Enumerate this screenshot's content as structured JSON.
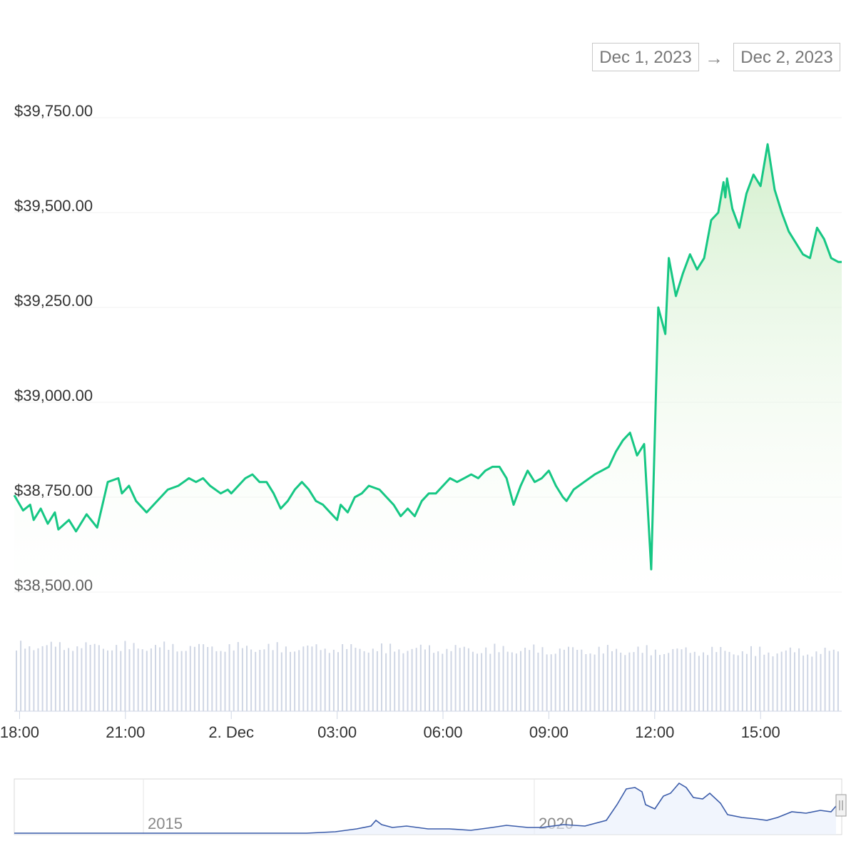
{
  "range": {
    "from": "Dec 1, 2023",
    "arrow": "→",
    "to": "Dec 2, 2023"
  },
  "colors": {
    "line": "#16c784",
    "fill_top": "#d6f0cf",
    "volume": "#cfd6e4",
    "navigator_line": "#3a5ba9",
    "grid": "#f0f0f0"
  },
  "chart_data": {
    "type": "line",
    "y_axis": {
      "ticks": [
        "$39,750.00",
        "$39,500.00",
        "$39,250.00",
        "$39,000.00",
        "$38,750.00",
        "$38,500.00"
      ],
      "tick_values": [
        39750,
        39500,
        39250,
        39000,
        38750,
        38500
      ],
      "ylim": [
        38500,
        39750
      ]
    },
    "x_axis": {
      "ticks": [
        "18:00",
        "21:00",
        "2. Dec",
        "03:00",
        "06:00",
        "09:00",
        "12:00",
        "15:00"
      ],
      "tick_hours": [
        0,
        3,
        6,
        9,
        12,
        15,
        18,
        21
      ],
      "xlim_hours": [
        -0.15,
        23.3
      ]
    },
    "series": [
      {
        "hours": [
          -0.15,
          0.1,
          0.3,
          0.4,
          0.6,
          0.8,
          1.0,
          1.1,
          1.4,
          1.6,
          1.9,
          2.2,
          2.5,
          2.8,
          2.9,
          3.1,
          3.3,
          3.6,
          3.8,
          4.0,
          4.2,
          4.5,
          4.8,
          5.0,
          5.2,
          5.4,
          5.7,
          5.9,
          6.0,
          6.2,
          6.4,
          6.6,
          6.8,
          7.0,
          7.2,
          7.4,
          7.6,
          7.8,
          8.0,
          8.2,
          8.4,
          8.6,
          8.8,
          9.0,
          9.1,
          9.3,
          9.5,
          9.7,
          9.9,
          10.2,
          10.4,
          10.6,
          10.8,
          11.0,
          11.2,
          11.4,
          11.6,
          11.8,
          12.0,
          12.2,
          12.4,
          12.6,
          12.8,
          13.0,
          13.2,
          13.4,
          13.6,
          13.8,
          14.0,
          14.2,
          14.4,
          14.6,
          14.8,
          15.0,
          15.2,
          15.4,
          15.5,
          15.7,
          16.0,
          16.3,
          16.5,
          16.7,
          16.9,
          17.1,
          17.3,
          17.5,
          17.7,
          17.9,
          18.1,
          18.3,
          18.4,
          18.6,
          18.8,
          19.0,
          19.2,
          19.4,
          19.6,
          19.8,
          19.95,
          20.0,
          20.05,
          20.2,
          20.4,
          20.6,
          20.8,
          21.0,
          21.2,
          21.4,
          21.6,
          21.8,
          22.0,
          22.2,
          22.4,
          22.6,
          22.8,
          23.0,
          23.2,
          23.3
        ],
        "values": [
          38755,
          38715,
          38730,
          38690,
          38720,
          38680,
          38710,
          38665,
          38690,
          38660,
          38705,
          38670,
          38790,
          38800,
          38760,
          38780,
          38740,
          38710,
          38730,
          38750,
          38770,
          38780,
          38800,
          38790,
          38800,
          38780,
          38760,
          38770,
          38760,
          38780,
          38800,
          38810,
          38790,
          38790,
          38760,
          38720,
          38740,
          38770,
          38790,
          38770,
          38740,
          38730,
          38710,
          38690,
          38730,
          38710,
          38750,
          38760,
          38780,
          38770,
          38750,
          38730,
          38700,
          38720,
          38700,
          38740,
          38760,
          38760,
          38780,
          38800,
          38790,
          38800,
          38810,
          38800,
          38820,
          38830,
          38830,
          38800,
          38730,
          38780,
          38820,
          38790,
          38800,
          38820,
          38780,
          38750,
          38740,
          38770,
          38790,
          38810,
          38820,
          38830,
          38870,
          38900,
          38920,
          38860,
          38890,
          38560,
          39250,
          39180,
          39380,
          39280,
          39340,
          39390,
          39350,
          39380,
          39480,
          39500,
          39580,
          39540,
          39590,
          39510,
          39460,
          39550,
          39600,
          39570,
          39680,
          39560,
          39500,
          39450,
          39420,
          39390,
          39380,
          39460,
          39430,
          39380,
          39370,
          39370
        ],
        "comment": "price in USD"
      }
    ],
    "volume": {
      "comment": "relative volume bars, 0-1 scale",
      "count": 190
    }
  },
  "navigator": {
    "labels": [
      "2015",
      "2020"
    ]
  }
}
